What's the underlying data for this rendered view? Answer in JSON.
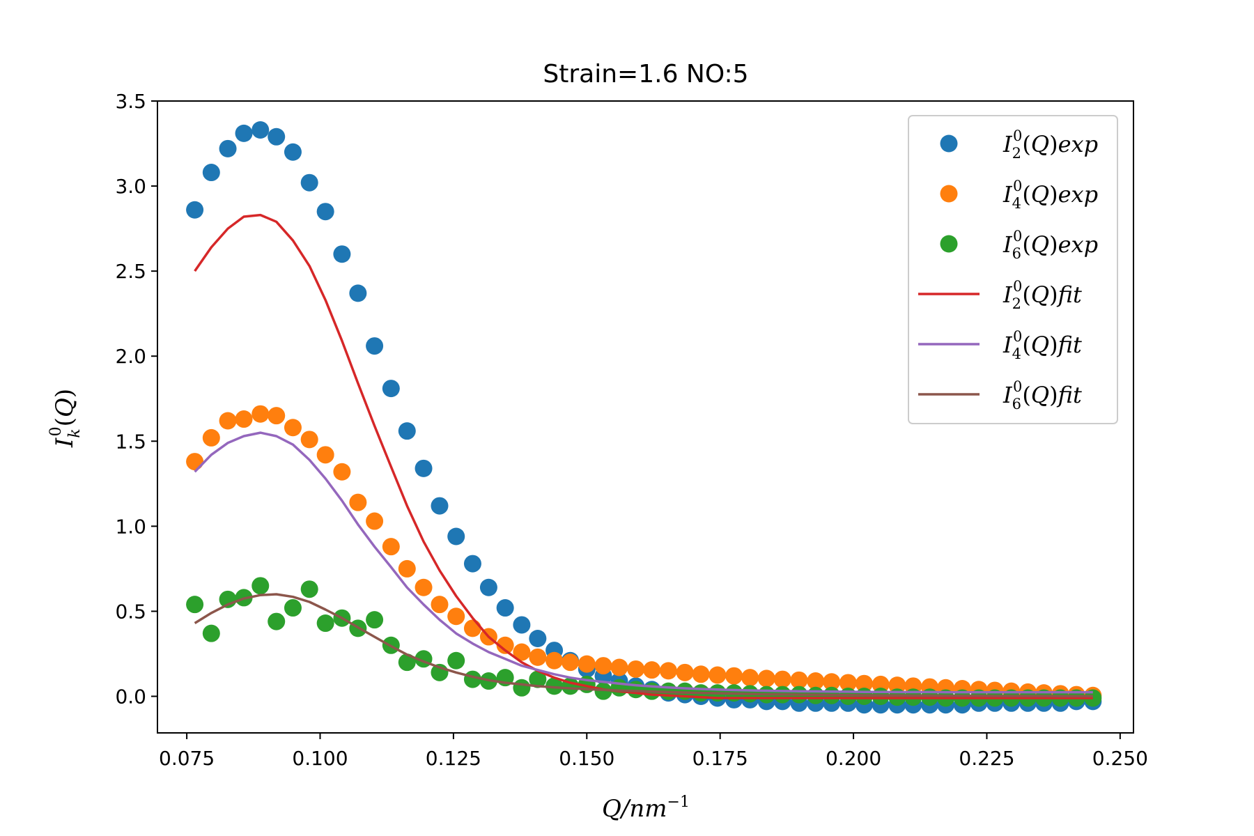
{
  "chart_data": {
    "type": "scatter",
    "title": "Strain=1.6 NO:5",
    "xlabel": "Q/nm⁻¹",
    "ylabel": "I⁰ₖ(Q)",
    "xlim": [
      0.0695,
      0.2525
    ],
    "ylim": [
      -0.215,
      3.5
    ],
    "x_ticks": [
      "0.075",
      "0.100",
      "0.125",
      "0.150",
      "0.175",
      "0.200",
      "0.225",
      "0.250"
    ],
    "y_ticks": [
      "0.0",
      "0.5",
      "1.0",
      "1.5",
      "2.0",
      "2.5",
      "3.0",
      "3.5"
    ],
    "grid": false,
    "legend_position": "upper right",
    "x": [
      0.0765,
      0.0796,
      0.0827,
      0.0857,
      0.0888,
      0.0918,
      0.0949,
      0.098,
      0.101,
      0.1041,
      0.1071,
      0.1102,
      0.1133,
      0.1163,
      0.1194,
      0.1224,
      0.1255,
      0.1286,
      0.1316,
      0.1347,
      0.1378,
      0.1408,
      0.1439,
      0.1469,
      0.15,
      0.1531,
      0.1561,
      0.1592,
      0.1622,
      0.1653,
      0.1684,
      0.1714,
      0.1745,
      0.1776,
      0.1806,
      0.1837,
      0.1867,
      0.1898,
      0.1929,
      0.1959,
      0.199,
      0.202,
      0.2051,
      0.2082,
      0.2112,
      0.2143,
      0.2173,
      0.2204,
      0.2235,
      0.2265,
      0.2296,
      0.2327,
      0.2357,
      0.2388,
      0.2418,
      0.2449
    ],
    "series": [
      {
        "name": "I⁰₂(Q)exp",
        "kind": "scatter",
        "color": "#1f77b4",
        "values": [
          2.86,
          3.08,
          3.22,
          3.31,
          3.33,
          3.29,
          3.2,
          3.02,
          2.85,
          2.6,
          2.37,
          2.06,
          1.81,
          1.56,
          1.34,
          1.12,
          0.94,
          0.78,
          0.64,
          0.52,
          0.42,
          0.34,
          0.27,
          0.21,
          0.16,
          0.12,
          0.09,
          0.06,
          0.04,
          0.02,
          0.01,
          0.0,
          -0.01,
          -0.02,
          -0.02,
          -0.03,
          -0.03,
          -0.04,
          -0.04,
          -0.04,
          -0.04,
          -0.05,
          -0.05,
          -0.05,
          -0.05,
          -0.05,
          -0.05,
          -0.05,
          -0.04,
          -0.04,
          -0.04,
          -0.04,
          -0.04,
          -0.04,
          -0.03,
          -0.03
        ]
      },
      {
        "name": "I⁰₄(Q)exp",
        "kind": "scatter",
        "color": "#ff7f0e",
        "values": [
          1.38,
          1.52,
          1.62,
          1.63,
          1.66,
          1.65,
          1.58,
          1.51,
          1.42,
          1.32,
          1.14,
          1.03,
          0.88,
          0.75,
          0.64,
          0.54,
          0.47,
          0.4,
          0.35,
          0.3,
          0.26,
          0.23,
          0.21,
          0.2,
          0.19,
          0.18,
          0.17,
          0.16,
          0.155,
          0.15,
          0.14,
          0.13,
          0.125,
          0.12,
          0.11,
          0.105,
          0.1,
          0.095,
          0.09,
          0.085,
          0.08,
          0.075,
          0.07,
          0.065,
          0.06,
          0.055,
          0.05,
          0.045,
          0.04,
          0.035,
          0.03,
          0.025,
          0.02,
          0.015,
          0.01,
          0.005
        ]
      },
      {
        "name": "I⁰₆(Q)exp",
        "kind": "scatter",
        "color": "#2ca02c",
        "values": [
          0.54,
          0.37,
          0.57,
          0.58,
          0.65,
          0.44,
          0.52,
          0.63,
          0.43,
          0.46,
          0.4,
          0.45,
          0.3,
          0.2,
          0.22,
          0.14,
          0.21,
          0.1,
          0.09,
          0.11,
          0.05,
          0.1,
          0.06,
          0.06,
          0.07,
          0.03,
          0.05,
          0.04,
          0.03,
          0.03,
          0.03,
          0.02,
          0.02,
          0.02,
          0.015,
          0.01,
          0.01,
          0.01,
          0.005,
          0.005,
          0.0,
          0.0,
          0.0,
          -0.005,
          -0.005,
          -0.005,
          -0.01,
          -0.01,
          -0.01,
          -0.01,
          -0.01,
          -0.01,
          -0.01,
          -0.01,
          -0.01,
          -0.01
        ]
      },
      {
        "name": "I⁰₂(Q)fit",
        "kind": "line",
        "color": "#d62728",
        "values": [
          2.5,
          2.64,
          2.75,
          2.82,
          2.83,
          2.79,
          2.68,
          2.53,
          2.33,
          2.09,
          1.84,
          1.59,
          1.35,
          1.12,
          0.91,
          0.74,
          0.59,
          0.46,
          0.35,
          0.27,
          0.2,
          0.15,
          0.11,
          0.08,
          0.06,
          0.04,
          0.03,
          0.02,
          0.01,
          0.005,
          0.0,
          -0.005,
          -0.01,
          -0.01,
          -0.01,
          -0.01,
          -0.01,
          -0.01,
          -0.01,
          -0.01,
          -0.01,
          -0.01,
          -0.01,
          -0.01,
          -0.01,
          -0.01,
          -0.01,
          -0.01,
          -0.01,
          -0.01,
          -0.01,
          -0.01,
          -0.01,
          -0.01,
          -0.01,
          -0.01
        ]
      },
      {
        "name": "I⁰₄(Q)fit",
        "kind": "line",
        "color": "#9467bd",
        "values": [
          1.32,
          1.42,
          1.49,
          1.53,
          1.55,
          1.53,
          1.48,
          1.39,
          1.28,
          1.15,
          1.01,
          0.88,
          0.76,
          0.64,
          0.54,
          0.45,
          0.37,
          0.31,
          0.26,
          0.22,
          0.18,
          0.155,
          0.13,
          0.11,
          0.095,
          0.085,
          0.075,
          0.065,
          0.058,
          0.052,
          0.047,
          0.043,
          0.04,
          0.037,
          0.035,
          0.033,
          0.031,
          0.03,
          0.029,
          0.028,
          0.027,
          0.026,
          0.026,
          0.025,
          0.025,
          0.025,
          0.024,
          0.024,
          0.024,
          0.024,
          0.024,
          0.024,
          0.024,
          0.024,
          0.024,
          0.024
        ]
      },
      {
        "name": "I⁰₆(Q)fit",
        "kind": "line",
        "color": "#8c564b",
        "values": [
          0.43,
          0.49,
          0.54,
          0.575,
          0.595,
          0.6,
          0.585,
          0.555,
          0.51,
          0.46,
          0.405,
          0.35,
          0.295,
          0.245,
          0.205,
          0.17,
          0.14,
          0.115,
          0.095,
          0.08,
          0.07,
          0.06,
          0.053,
          0.047,
          0.042,
          0.038,
          0.034,
          0.031,
          0.028,
          0.025,
          0.022,
          0.02,
          0.018,
          0.016,
          0.014,
          0.012,
          0.011,
          0.01,
          0.009,
          0.008,
          0.007,
          0.006,
          0.005,
          0.005,
          0.004,
          0.004,
          0.003,
          0.003,
          0.003,
          0.002,
          0.002,
          0.002,
          0.002,
          0.001,
          0.001,
          0.001
        ]
      }
    ]
  }
}
